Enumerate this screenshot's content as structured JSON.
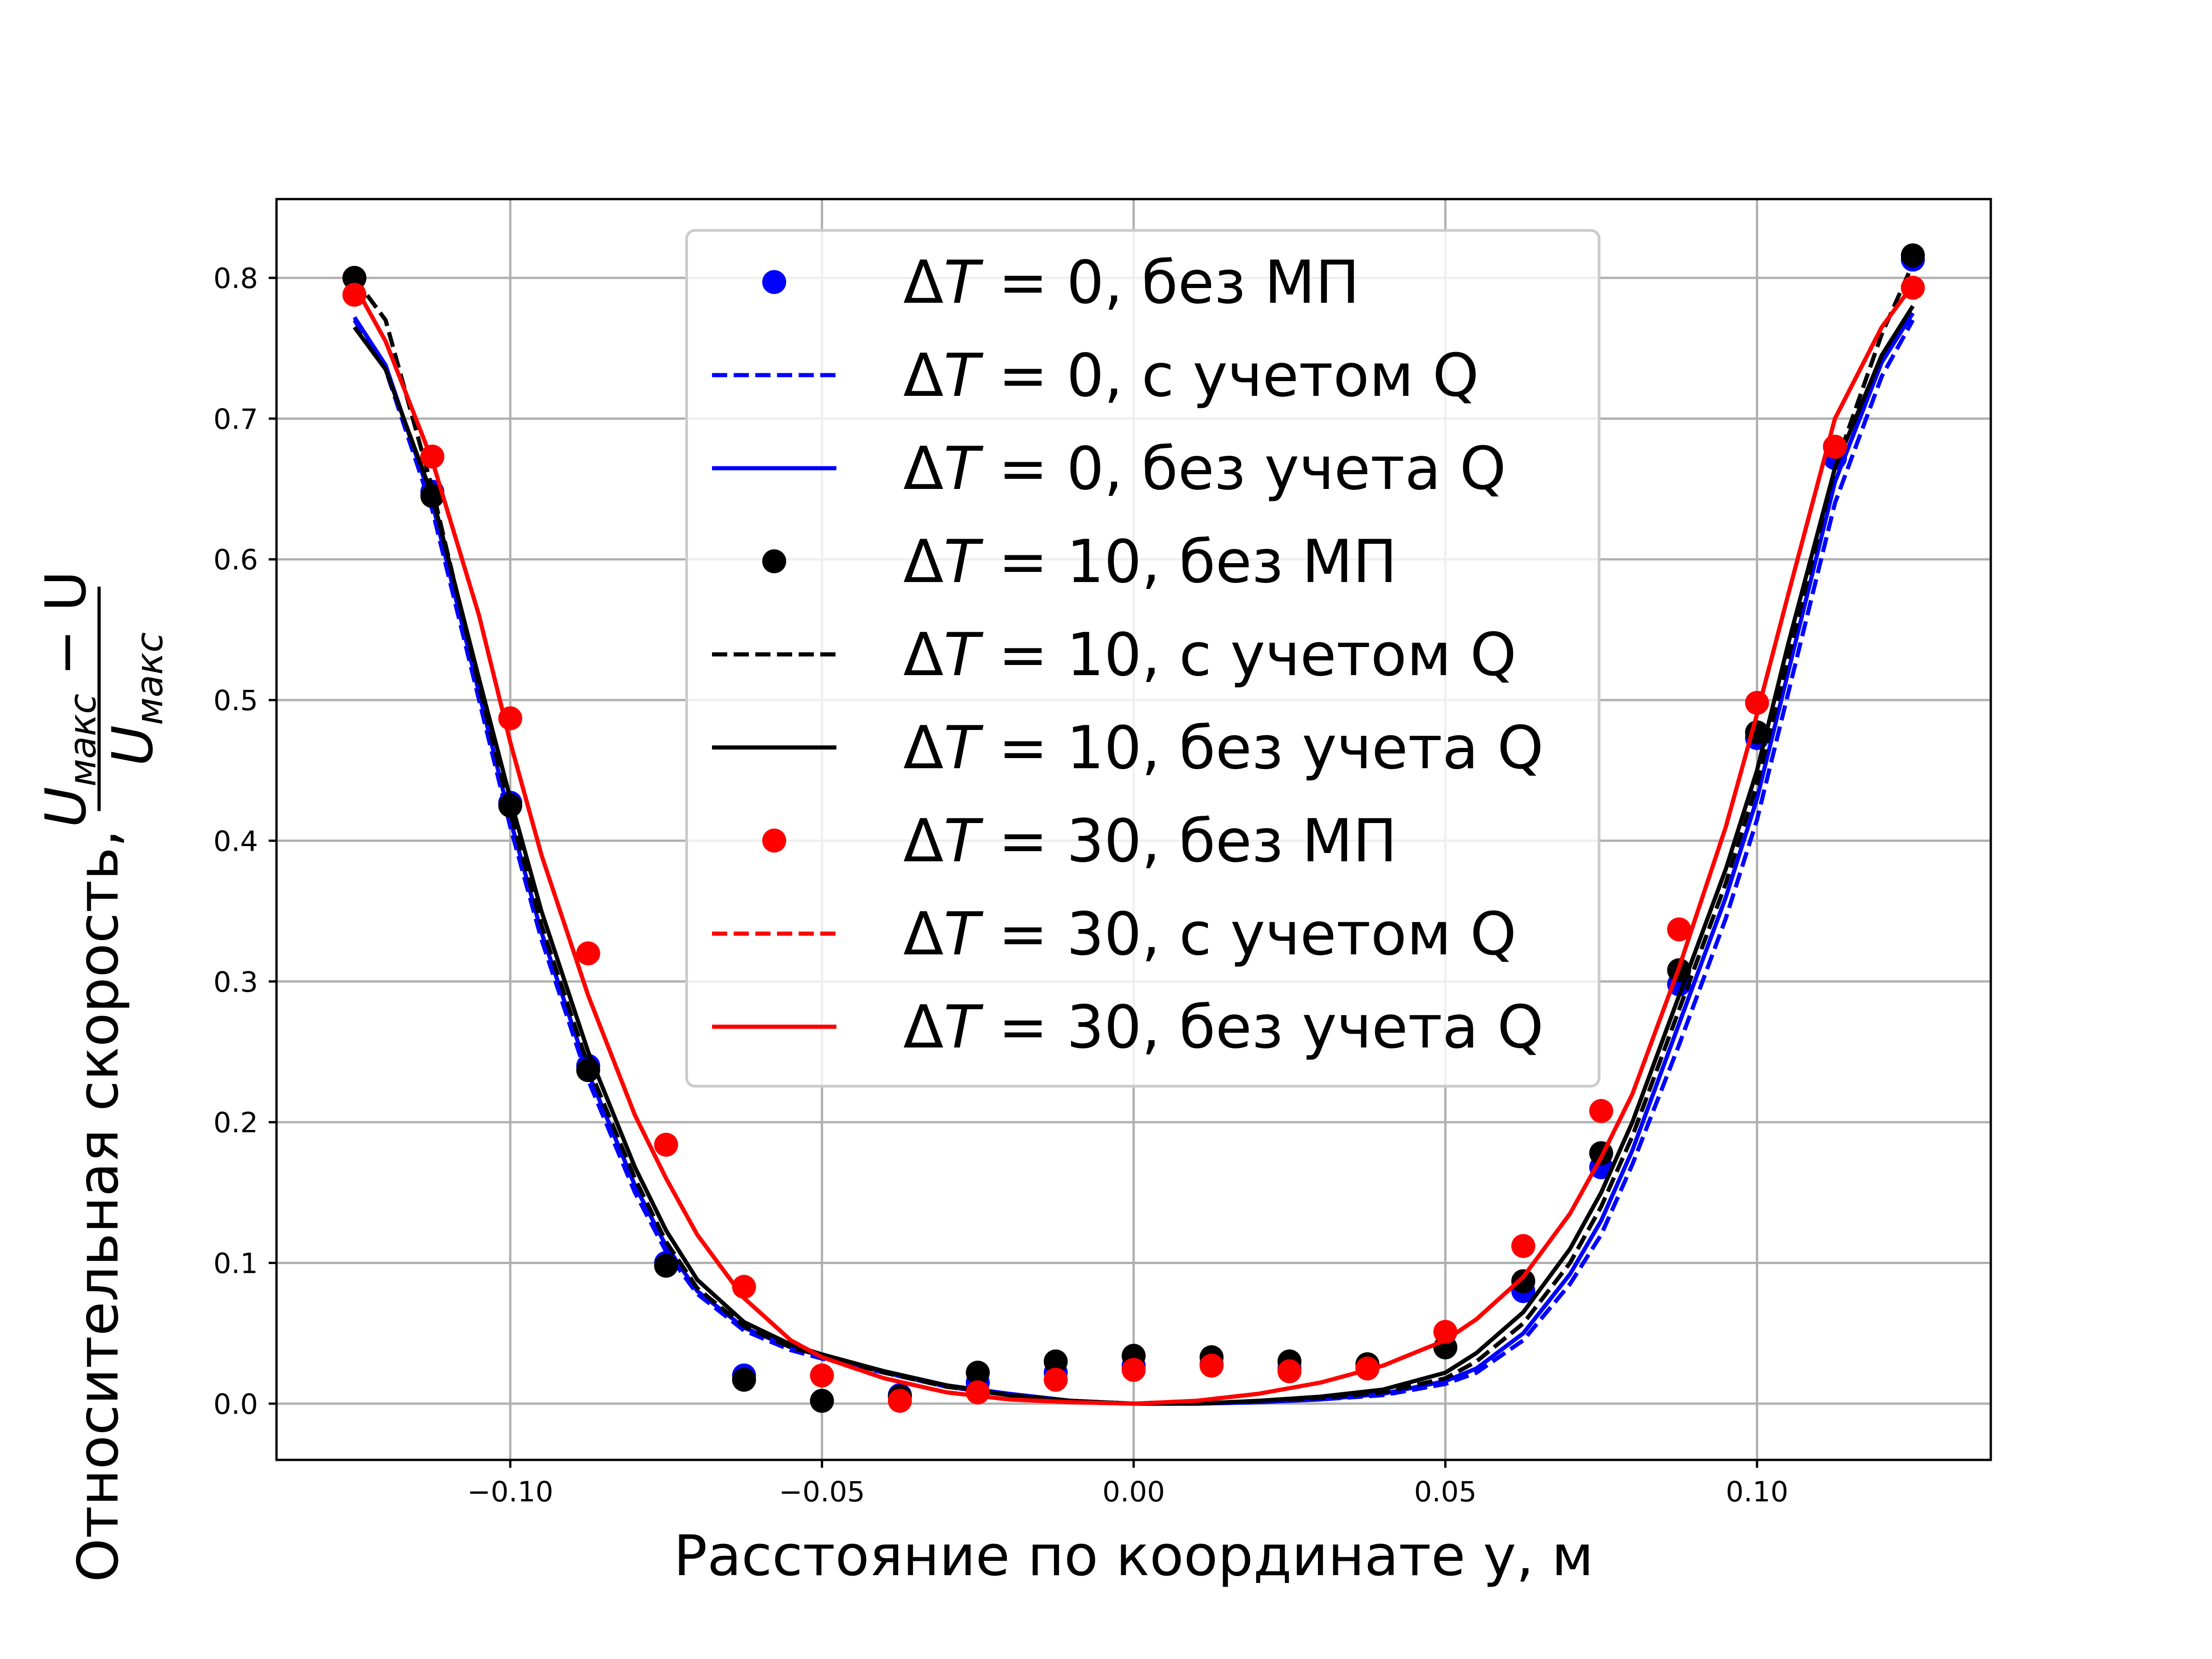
{
  "chart_data": {
    "type": "line",
    "xlabel": "Расстояние по координате y, м",
    "ylabel": {
      "prefix": "Относительная скорость,",
      "fraction_numerator": "U_макс − U",
      "fraction_denominator": "U_макс",
      "num_main": "U",
      "num_sub": "макс",
      "num_tail": " − U",
      "den_main": "U",
      "den_sub": "макс"
    },
    "xlim": [
      -0.1375,
      0.1375
    ],
    "ylim": [
      -0.04,
      0.856
    ],
    "grid": true,
    "legend_position": "top-center",
    "x_ticks": [
      {
        "value": -0.1,
        "label": "−0.10"
      },
      {
        "value": -0.05,
        "label": "−0.05"
      },
      {
        "value": 0.0,
        "label": "0.00"
      },
      {
        "value": 0.05,
        "label": "0.05"
      },
      {
        "value": 0.1,
        "label": "0.10"
      }
    ],
    "y_ticks": [
      {
        "value": 0.0,
        "label": "0.0"
      },
      {
        "value": 0.1,
        "label": "0.1"
      },
      {
        "value": 0.2,
        "label": "0.2"
      },
      {
        "value": 0.3,
        "label": "0.3"
      },
      {
        "value": 0.4,
        "label": "0.4"
      },
      {
        "value": 0.5,
        "label": "0.5"
      },
      {
        "value": 0.6,
        "label": "0.6"
      },
      {
        "value": 0.7,
        "label": "0.7"
      },
      {
        "value": 0.8,
        "label": "0.8"
      }
    ],
    "series": [
      {
        "name": "ΔT = 0, без МП",
        "name_delta": "Δ",
        "name_T": "T",
        "name_rest": " = 0, без МП",
        "style": "points",
        "color": "#0000ff",
        "x": [
          -0.125,
          -0.1125,
          -0.1,
          -0.0875,
          -0.075,
          -0.0625,
          -0.05,
          -0.0375,
          -0.025,
          -0.0125,
          0.0,
          0.0125,
          0.025,
          0.0375,
          0.05,
          0.0625,
          0.075,
          0.0875,
          0.1,
          0.1125,
          0.125
        ],
        "y": [
          0.8,
          0.648,
          0.427,
          0.24,
          0.1,
          0.02,
          0.002,
          0.006,
          0.015,
          0.022,
          0.027,
          0.028,
          0.025,
          0.025,
          0.04,
          0.08,
          0.168,
          0.298,
          0.473,
          0.672,
          0.813
        ]
      },
      {
        "name": "ΔT = 0, с учетом Q",
        "name_delta": "Δ",
        "name_T": "T",
        "name_rest": " = 0, с учетом Q",
        "style": "dashed",
        "color": "#0000ff",
        "x": [
          -0.125,
          -0.12,
          -0.1125,
          -0.105,
          -0.1,
          -0.095,
          -0.0875,
          -0.08,
          -0.075,
          -0.07,
          -0.0625,
          -0.055,
          -0.05,
          -0.04,
          -0.03,
          -0.02,
          -0.01,
          0.0,
          0.01,
          0.02,
          0.03,
          0.04,
          0.05,
          0.055,
          0.0625,
          0.07,
          0.075,
          0.08,
          0.0875,
          0.095,
          0.1,
          0.105,
          0.1125,
          0.12,
          0.125
        ],
        "y": [
          0.77,
          0.735,
          0.635,
          0.5,
          0.41,
          0.33,
          0.23,
          0.15,
          0.108,
          0.078,
          0.052,
          0.038,
          0.032,
          0.022,
          0.012,
          0.006,
          0.002,
          0.0,
          0.0,
          0.001,
          0.003,
          0.006,
          0.014,
          0.022,
          0.045,
          0.085,
          0.12,
          0.17,
          0.255,
          0.345,
          0.415,
          0.505,
          0.64,
          0.73,
          0.77
        ]
      },
      {
        "name": "ΔT = 0, без учета Q",
        "name_delta": "Δ",
        "name_T": "T",
        "name_rest": " = 0, без учета Q",
        "style": "solid",
        "color": "#0000ff",
        "x": [
          -0.125,
          -0.12,
          -0.1125,
          -0.105,
          -0.1,
          -0.095,
          -0.0875,
          -0.08,
          -0.075,
          -0.07,
          -0.0625,
          -0.055,
          -0.05,
          -0.04,
          -0.03,
          -0.02,
          -0.01,
          0.0,
          0.01,
          0.02,
          0.03,
          0.04,
          0.05,
          0.055,
          0.0625,
          0.07,
          0.075,
          0.08,
          0.0875,
          0.095,
          0.1,
          0.105,
          0.1125,
          0.12,
          0.125
        ],
        "y": [
          0.772,
          0.738,
          0.64,
          0.505,
          0.415,
          0.335,
          0.235,
          0.155,
          0.112,
          0.08,
          0.054,
          0.04,
          0.034,
          0.023,
          0.013,
          0.007,
          0.002,
          0.0,
          0.0,
          0.001,
          0.003,
          0.007,
          0.016,
          0.025,
          0.05,
          0.092,
          0.13,
          0.18,
          0.27,
          0.36,
          0.43,
          0.52,
          0.655,
          0.74,
          0.775
        ]
      },
      {
        "name": "ΔT = 10, без МП",
        "name_delta": "Δ",
        "name_T": "T",
        "name_rest": " = 10, без МП",
        "style": "points",
        "color": "#000000",
        "x": [
          -0.125,
          -0.1125,
          -0.1,
          -0.0875,
          -0.075,
          -0.0625,
          -0.05,
          -0.0375,
          -0.025,
          -0.0125,
          0.0,
          0.0125,
          0.025,
          0.0375,
          0.05,
          0.0625,
          0.075,
          0.0875,
          0.1,
          0.1125,
          0.125
        ],
        "y": [
          0.8,
          0.645,
          0.425,
          0.237,
          0.098,
          0.017,
          0.002,
          0.005,
          0.022,
          0.03,
          0.034,
          0.033,
          0.03,
          0.028,
          0.04,
          0.087,
          0.178,
          0.308,
          0.477,
          0.68,
          0.816
        ]
      },
      {
        "name": "ΔT = 10, с учетом Q",
        "name_delta": "Δ",
        "name_T": "T",
        "name_rest": " = 10, с учетом Q",
        "style": "dashed",
        "color": "#000000",
        "x": [
          -0.125,
          -0.12,
          -0.1125,
          -0.105,
          -0.1,
          -0.095,
          -0.0875,
          -0.08,
          -0.075,
          -0.07,
          -0.0625,
          -0.055,
          -0.05,
          -0.04,
          -0.03,
          -0.02,
          -0.01,
          0.0,
          0.01,
          0.02,
          0.03,
          0.04,
          0.05,
          0.055,
          0.0625,
          0.07,
          0.075,
          0.08,
          0.0875,
          0.095,
          0.1,
          0.105,
          0.1125,
          0.12,
          0.125
        ],
        "y": [
          0.8,
          0.77,
          0.65,
          0.51,
          0.42,
          0.34,
          0.24,
          0.16,
          0.115,
          0.082,
          0.055,
          0.04,
          0.034,
          0.022,
          0.012,
          0.006,
          0.002,
          0.0,
          0.0,
          0.002,
          0.004,
          0.008,
          0.018,
          0.03,
          0.057,
          0.1,
          0.14,
          0.19,
          0.28,
          0.37,
          0.44,
          0.53,
          0.665,
          0.76,
          0.81
        ]
      },
      {
        "name": "ΔT = 10, без учета Q",
        "name_delta": "Δ",
        "name_T": "T",
        "name_rest": " = 10, без учета Q",
        "style": "solid",
        "color": "#000000",
        "x": [
          -0.125,
          -0.12,
          -0.1125,
          -0.105,
          -0.1,
          -0.095,
          -0.0875,
          -0.08,
          -0.075,
          -0.07,
          -0.0625,
          -0.055,
          -0.05,
          -0.04,
          -0.03,
          -0.02,
          -0.01,
          0.0,
          0.01,
          0.02,
          0.03,
          0.04,
          0.05,
          0.055,
          0.0625,
          0.07,
          0.075,
          0.08,
          0.0875,
          0.095,
          0.1,
          0.105,
          0.1125,
          0.12,
          0.125
        ],
        "y": [
          0.765,
          0.735,
          0.645,
          0.515,
          0.43,
          0.35,
          0.25,
          0.168,
          0.123,
          0.088,
          0.058,
          0.042,
          0.035,
          0.023,
          0.013,
          0.006,
          0.002,
          0.0,
          0.0,
          0.002,
          0.005,
          0.01,
          0.022,
          0.036,
          0.065,
          0.11,
          0.15,
          0.2,
          0.29,
          0.38,
          0.45,
          0.54,
          0.665,
          0.745,
          0.78
        ]
      },
      {
        "name": "ΔT = 30, без МП",
        "name_delta": "Δ",
        "name_T": "T",
        "name_rest": " = 30, без МП",
        "style": "points",
        "color": "#ff0000",
        "x": [
          -0.125,
          -0.1125,
          -0.1,
          -0.0875,
          -0.075,
          -0.0625,
          -0.05,
          -0.0375,
          -0.025,
          -0.0125,
          0.0,
          0.0125,
          0.025,
          0.0375,
          0.05,
          0.0625,
          0.075,
          0.0875,
          0.1,
          0.1125,
          0.125
        ],
        "y": [
          0.788,
          0.673,
          0.487,
          0.32,
          0.184,
          0.083,
          0.02,
          0.002,
          0.008,
          0.017,
          0.024,
          0.027,
          0.023,
          0.025,
          0.051,
          0.112,
          0.208,
          0.337,
          0.498,
          0.68,
          0.793
        ]
      },
      {
        "name": "ΔT = 30, с учетом Q",
        "name_delta": "Δ",
        "name_T": "T",
        "name_rest": " = 30, с учетом Q",
        "style": "dashed",
        "color": "#ff0000",
        "x": [
          -0.125,
          -0.12,
          -0.1125,
          -0.105,
          -0.1,
          -0.095,
          -0.0875,
          -0.08,
          -0.075,
          -0.07,
          -0.0625,
          -0.055,
          -0.05,
          -0.04,
          -0.03,
          -0.02,
          -0.01,
          0.0,
          0.01,
          0.02,
          0.03,
          0.04,
          0.05,
          0.055,
          0.0625,
          0.07,
          0.075,
          0.08,
          0.0875,
          0.095,
          0.1,
          0.105,
          0.1125,
          0.12,
          0.125
        ],
        "y": [
          0.795,
          0.755,
          0.67,
          0.56,
          0.47,
          0.39,
          0.29,
          0.205,
          0.16,
          0.12,
          0.075,
          0.045,
          0.033,
          0.018,
          0.008,
          0.003,
          0.001,
          0.0,
          0.002,
          0.007,
          0.015,
          0.027,
          0.045,
          0.06,
          0.09,
          0.135,
          0.175,
          0.22,
          0.31,
          0.41,
          0.49,
          0.575,
          0.7,
          0.765,
          0.795
        ]
      },
      {
        "name": "ΔT = 30, без учета Q",
        "name_delta": "Δ",
        "name_T": "T",
        "name_rest": " = 30, без учета Q",
        "style": "solid",
        "color": "#ff0000",
        "x": [
          -0.125,
          -0.12,
          -0.1125,
          -0.105,
          -0.1,
          -0.095,
          -0.0875,
          -0.08,
          -0.075,
          -0.07,
          -0.0625,
          -0.055,
          -0.05,
          -0.04,
          -0.03,
          -0.02,
          -0.01,
          0.0,
          0.01,
          0.02,
          0.03,
          0.04,
          0.05,
          0.055,
          0.0625,
          0.07,
          0.075,
          0.08,
          0.0875,
          0.095,
          0.1,
          0.105,
          0.1125,
          0.12,
          0.125
        ],
        "y": [
          0.795,
          0.755,
          0.67,
          0.56,
          0.47,
          0.39,
          0.29,
          0.205,
          0.16,
          0.12,
          0.075,
          0.045,
          0.033,
          0.018,
          0.008,
          0.003,
          0.001,
          0.0,
          0.002,
          0.007,
          0.015,
          0.027,
          0.045,
          0.06,
          0.09,
          0.135,
          0.175,
          0.22,
          0.31,
          0.41,
          0.49,
          0.575,
          0.7,
          0.765,
          0.795
        ]
      }
    ]
  }
}
